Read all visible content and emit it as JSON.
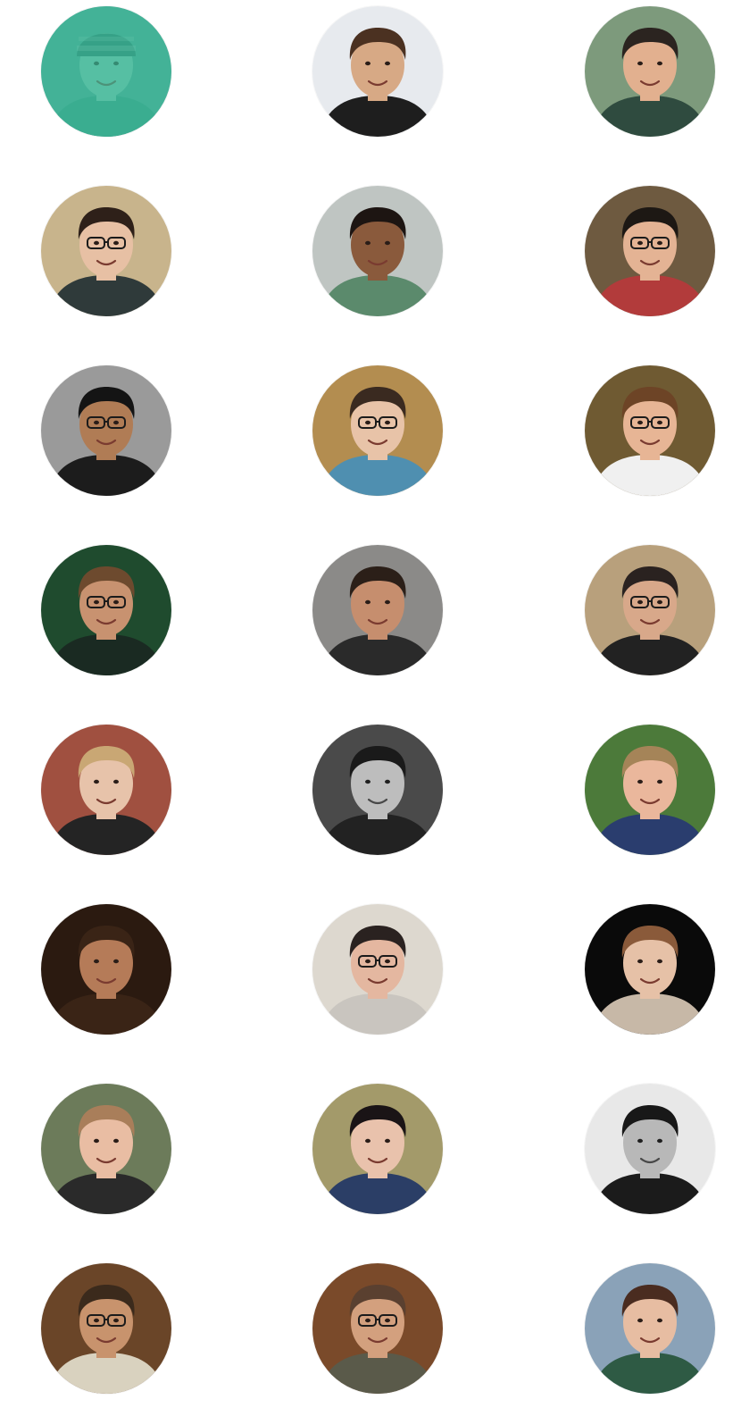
{
  "overlay_color": "#3ab595",
  "people": [
    {
      "name": "team-member-1",
      "bg": "#5aa99a",
      "skin": "#9fd8c6",
      "hair": "#2f7d6e",
      "shirt": "#3a9683",
      "hat": "#2d6e63",
      "glasses": false,
      "mono": false,
      "highlighted": true
    },
    {
      "name": "team-member-2",
      "bg": "#e7eaee",
      "skin": "#d7a985",
      "hair": "#4b3121",
      "shirt": "#1e1e1e",
      "hat": null,
      "glasses": false,
      "mono": false,
      "highlighted": false
    },
    {
      "name": "team-member-3",
      "bg": "#7d9a7c",
      "skin": "#e2b08f",
      "hair": "#2b2420",
      "shirt": "#2f4b3f",
      "hat": null,
      "glasses": false,
      "mono": false,
      "highlighted": false
    },
    {
      "name": "team-member-4",
      "bg": "#c8b48c",
      "skin": "#e7c0a4",
      "hair": "#2e2019",
      "shirt": "#2f3a3a",
      "hat": null,
      "glasses": true,
      "mono": false,
      "highlighted": false
    },
    {
      "name": "team-member-5",
      "bg": "#bfc5c2",
      "skin": "#8a5a3c",
      "hair": "#1d1512",
      "shirt": "#5b8a6c",
      "hat": null,
      "glasses": false,
      "mono": false,
      "highlighted": false
    },
    {
      "name": "team-member-6",
      "bg": "#6e5a40",
      "skin": "#e4b394",
      "hair": "#1d1814",
      "shirt": "#b23b3b",
      "hat": null,
      "glasses": true,
      "mono": false,
      "highlighted": false
    },
    {
      "name": "team-member-7",
      "bg": "#9a9a9a",
      "skin": "#b07c55",
      "hair": "#141414",
      "shirt": "#1c1c1c",
      "hat": null,
      "glasses": true,
      "mono": false,
      "highlighted": false
    },
    {
      "name": "team-member-8",
      "bg": "#b38d50",
      "skin": "#e8c3a8",
      "hair": "#3a2a20",
      "shirt": "#4f8fb0",
      "hat": null,
      "glasses": true,
      "mono": false,
      "highlighted": false
    },
    {
      "name": "team-member-9",
      "bg": "#6f5a32",
      "skin": "#e7b595",
      "hair": "#6d4426",
      "shirt": "#f0f0f0",
      "hat": null,
      "glasses": true,
      "mono": false,
      "highlighted": false
    },
    {
      "name": "team-member-10",
      "bg": "#1f4b2e",
      "skin": "#c89270",
      "hair": "#6d4a2e",
      "shirt": "#1a2a22",
      "hat": null,
      "glasses": true,
      "mono": false,
      "highlighted": false
    },
    {
      "name": "team-member-11",
      "bg": "#8b8a88",
      "skin": "#c68e6e",
      "hair": "#2b1f18",
      "shirt": "#2a2a2a",
      "hat": null,
      "glasses": false,
      "mono": false,
      "highlighted": false
    },
    {
      "name": "team-member-12",
      "bg": "#b8a07c",
      "skin": "#d8a88a",
      "hair": "#2a2220",
      "shirt": "#222222",
      "hat": null,
      "glasses": true,
      "mono": false,
      "highlighted": false
    },
    {
      "name": "team-member-13",
      "bg": "#a05040",
      "skin": "#e7c3aa",
      "hair": "#c9a774",
      "shirt": "#242424",
      "hat": null,
      "glasses": false,
      "mono": false,
      "highlighted": false
    },
    {
      "name": "team-member-14",
      "bg": "#4a4a4a",
      "skin": "#bdbdbd",
      "hair": "#1a1a1a",
      "shirt": "#222222",
      "hat": null,
      "glasses": false,
      "mono": true,
      "highlighted": false
    },
    {
      "name": "team-member-15",
      "bg": "#4c7a3a",
      "skin": "#eab79c",
      "hair": "#a58458",
      "shirt": "#2a3d6e",
      "hat": null,
      "glasses": false,
      "mono": false,
      "highlighted": false
    },
    {
      "name": "team-member-16",
      "bg": "#2b1a10",
      "skin": "#b57b58",
      "hair": "#3a2416",
      "shirt": "#3a2416",
      "hat": null,
      "glasses": false,
      "mono": false,
      "highlighted": false
    },
    {
      "name": "team-member-17",
      "bg": "#ddd8cf",
      "skin": "#e4b7a0",
      "hair": "#2a2220",
      "shirt": "#c9c5bf",
      "hat": null,
      "glasses": true,
      "mono": false,
      "highlighted": false
    },
    {
      "name": "team-member-18",
      "bg": "#0a0a0a",
      "skin": "#e6c1a7",
      "hair": "#8a5a3a",
      "shirt": "#c7b8a7",
      "hat": null,
      "glasses": false,
      "mono": false,
      "highlighted": false
    },
    {
      "name": "team-member-19",
      "bg": "#6c7b5a",
      "skin": "#e9bda3",
      "hair": "#a97e5a",
      "shirt": "#2a2a2a",
      "hat": null,
      "glasses": false,
      "mono": false,
      "highlighted": false
    },
    {
      "name": "team-member-20",
      "bg": "#a39a6a",
      "skin": "#e9c2ac",
      "hair": "#1a1416",
      "shirt": "#2b3e66",
      "hat": null,
      "glasses": false,
      "mono": false,
      "highlighted": false
    },
    {
      "name": "team-member-21",
      "bg": "#e8e8e8",
      "skin": "#b8b8b8",
      "hair": "#181818",
      "shirt": "#1b1b1b",
      "hat": null,
      "glasses": false,
      "mono": true,
      "highlighted": false
    },
    {
      "name": "team-member-22",
      "bg": "#6a4528",
      "skin": "#c8936d",
      "hair": "#3b2a1c",
      "shirt": "#d9d2bf",
      "hat": null,
      "glasses": true,
      "mono": false,
      "highlighted": false
    },
    {
      "name": "team-member-23",
      "bg": "#7a4a2a",
      "skin": "#d3a07e",
      "hair": "#5a4030",
      "shirt": "#5a5a4a",
      "hat": null,
      "glasses": true,
      "mono": false,
      "highlighted": false
    },
    {
      "name": "team-member-24",
      "bg": "#8aa2b8",
      "skin": "#e7bda2",
      "hair": "#4a2c20",
      "shirt": "#2e5a44",
      "hat": null,
      "glasses": false,
      "mono": false,
      "highlighted": false
    }
  ]
}
